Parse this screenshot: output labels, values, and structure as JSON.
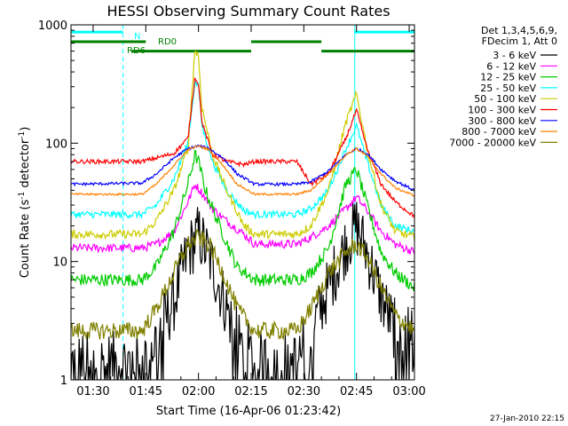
{
  "chart_data": {
    "type": "line",
    "title": "HESSI Observing Summary Count Rates",
    "xlabel": "Start Time (16-Apr-06 01:23:42)",
    "ylabel_main": "Count Rate (s",
    "ylabel_sup1": "-1",
    "ylabel_mid": " detector",
    "ylabel_sup2": "-1",
    "ylabel_end": ")",
    "y_scale": "log",
    "ylim": [
      1,
      1000
    ],
    "xlim_minutes": [
      83.7,
      181.5
    ],
    "x_ticks": [
      {
        "label": "01:30",
        "minutes": 90
      },
      {
        "label": "01:45",
        "minutes": 105
      },
      {
        "label": "02:00",
        "minutes": 120
      },
      {
        "label": "02:15",
        "minutes": 135
      },
      {
        "label": "02:30",
        "minutes": 150
      },
      {
        "label": "02:45",
        "minutes": 165
      },
      {
        "label": "03:00",
        "minutes": 180
      }
    ],
    "y_ticks": [
      {
        "label": "1",
        "value": 1
      },
      {
        "label": "10",
        "value": 10
      },
      {
        "label": "100",
        "value": 100
      },
      {
        "label": "1000",
        "value": 1000
      }
    ],
    "legend_header": [
      "Det 1,3,4,5,6,9,",
      "FDecim 1, Att 0"
    ],
    "legend_position": "right",
    "series": [
      {
        "name": "3 - 6 keV",
        "color": "#000000",
        "points": [
          [
            83.7,
            1.4
          ],
          [
            96,
            1.4
          ],
          [
            104,
            1.4
          ],
          [
            108,
            2.2
          ],
          [
            113,
            4.6
          ],
          [
            117,
            12
          ],
          [
            120,
            17
          ],
          [
            123,
            11
          ],
          [
            127,
            5
          ],
          [
            131,
            2.2
          ],
          [
            136,
            1.4
          ],
          [
            148,
            1.4
          ],
          [
            152,
            2.5
          ],
          [
            157,
            6
          ],
          [
            162,
            14
          ],
          [
            165,
            20
          ],
          [
            168,
            12
          ],
          [
            172,
            5
          ],
          [
            176,
            2.6
          ],
          [
            181.5,
            2.1
          ]
        ]
      },
      {
        "name": "6 - 12 keV",
        "color": "#ff00ff",
        "points": [
          [
            83.7,
            13
          ],
          [
            104,
            13
          ],
          [
            108,
            14
          ],
          [
            113,
            18
          ],
          [
            117,
            32
          ],
          [
            119,
            45
          ],
          [
            121,
            38
          ],
          [
            124,
            28
          ],
          [
            128,
            22
          ],
          [
            133,
            17
          ],
          [
            136,
            14
          ],
          [
            148,
            14
          ],
          [
            152,
            16
          ],
          [
            157,
            20
          ],
          [
            162,
            28
          ],
          [
            165,
            35
          ],
          [
            168,
            27
          ],
          [
            172,
            18
          ],
          [
            176,
            14
          ],
          [
            181.5,
            12
          ]
        ]
      },
      {
        "name": "12 - 25 keV",
        "color": "#00cc00",
        "points": [
          [
            83.7,
            7
          ],
          [
            104,
            7
          ],
          [
            108,
            9
          ],
          [
            113,
            18
          ],
          [
            117,
            45
          ],
          [
            119,
            80
          ],
          [
            120,
            70
          ],
          [
            122,
            40
          ],
          [
            126,
            20
          ],
          [
            131,
            9
          ],
          [
            136,
            7
          ],
          [
            148,
            7
          ],
          [
            152,
            8
          ],
          [
            157,
            13
          ],
          [
            162,
            45
          ],
          [
            165,
            60
          ],
          [
            168,
            30
          ],
          [
            172,
            12
          ],
          [
            176,
            8
          ],
          [
            181.5,
            6
          ]
        ]
      },
      {
        "name": "25 - 50 keV",
        "color": "#00ffff",
        "points": [
          [
            83.7,
            25
          ],
          [
            104,
            25
          ],
          [
            108,
            30
          ],
          [
            113,
            50
          ],
          [
            117,
            100
          ],
          [
            119,
            330
          ],
          [
            120,
            300
          ],
          [
            121,
            140
          ],
          [
            124,
            70
          ],
          [
            128,
            40
          ],
          [
            133,
            27
          ],
          [
            136,
            25
          ],
          [
            148,
            25
          ],
          [
            152,
            28
          ],
          [
            157,
            40
          ],
          [
            162,
            90
          ],
          [
            165,
            140
          ],
          [
            168,
            70
          ],
          [
            172,
            30
          ],
          [
            176,
            20
          ],
          [
            181.5,
            18
          ]
        ]
      },
      {
        "name": "50 - 100 keV",
        "color": "#cccc00",
        "points": [
          [
            83.7,
            17
          ],
          [
            104,
            17
          ],
          [
            108,
            22
          ],
          [
            113,
            40
          ],
          [
            117,
            90
          ],
          [
            119,
            620
          ],
          [
            120,
            540
          ],
          [
            121,
            200
          ],
          [
            124,
            80
          ],
          [
            128,
            40
          ],
          [
            133,
            20
          ],
          [
            136,
            17
          ],
          [
            148,
            17
          ],
          [
            152,
            20
          ],
          [
            157,
            40
          ],
          [
            162,
            150
          ],
          [
            165,
            260
          ],
          [
            168,
            90
          ],
          [
            172,
            30
          ],
          [
            176,
            18
          ],
          [
            181.5,
            16
          ]
        ]
      },
      {
        "name": "100 - 300 keV",
        "color": "#ff0000",
        "points": [
          [
            83.7,
            70
          ],
          [
            104,
            70
          ],
          [
            108,
            75
          ],
          [
            113,
            82
          ],
          [
            117,
            110
          ],
          [
            119,
            360
          ],
          [
            120,
            320
          ],
          [
            121,
            150
          ],
          [
            124,
            80
          ],
          [
            128,
            70
          ],
          [
            133,
            66
          ],
          [
            136,
            70
          ],
          [
            148,
            70
          ],
          [
            152,
            45
          ],
          [
            157,
            55
          ],
          [
            162,
            110
          ],
          [
            165,
            190
          ],
          [
            168,
            90
          ],
          [
            172,
            45
          ],
          [
            176,
            32
          ],
          [
            181.5,
            24
          ]
        ]
      },
      {
        "name": "300 - 800 keV",
        "color": "#0000ff",
        "points": [
          [
            83.7,
            45
          ],
          [
            104,
            46
          ],
          [
            108,
            55
          ],
          [
            113,
            75
          ],
          [
            117,
            90
          ],
          [
            120,
            95
          ],
          [
            123,
            90
          ],
          [
            127,
            75
          ],
          [
            131,
            55
          ],
          [
            136,
            45
          ],
          [
            148,
            45
          ],
          [
            152,
            47
          ],
          [
            157,
            58
          ],
          [
            162,
            80
          ],
          [
            165,
            90
          ],
          [
            168,
            82
          ],
          [
            172,
            60
          ],
          [
            176,
            48
          ],
          [
            181.5,
            40
          ]
        ]
      },
      {
        "name": "800 - 7000 keV",
        "color": "#ff8000",
        "points": [
          [
            83.7,
            37
          ],
          [
            104,
            37
          ],
          [
            108,
            45
          ],
          [
            113,
            65
          ],
          [
            117,
            88
          ],
          [
            120,
            95
          ],
          [
            123,
            88
          ],
          [
            127,
            65
          ],
          [
            131,
            45
          ],
          [
            136,
            37
          ],
          [
            148,
            37
          ],
          [
            152,
            40
          ],
          [
            157,
            55
          ],
          [
            162,
            80
          ],
          [
            165,
            90
          ],
          [
            168,
            78
          ],
          [
            172,
            55
          ],
          [
            176,
            42
          ],
          [
            181.5,
            36
          ]
        ]
      },
      {
        "name": "7000 - 20000 keV",
        "color": "#808000",
        "points": [
          [
            83.7,
            2.6
          ],
          [
            104,
            2.6
          ],
          [
            108,
            4
          ],
          [
            113,
            8
          ],
          [
            117,
            14
          ],
          [
            120,
            16
          ],
          [
            123,
            14
          ],
          [
            127,
            8
          ],
          [
            131,
            4
          ],
          [
            136,
            2.6
          ],
          [
            148,
            2.6
          ],
          [
            152,
            4
          ],
          [
            157,
            8
          ],
          [
            162,
            12
          ],
          [
            165,
            14
          ],
          [
            168,
            11
          ],
          [
            172,
            6
          ],
          [
            176,
            3.5
          ],
          [
            181.5,
            2.6
          ]
        ]
      }
    ],
    "status_bars": [
      {
        "label": "N",
        "color": "#00ffff",
        "level": 870,
        "segments": [
          [
            83.7,
            98.5
          ],
          [
            164.5,
            181.5
          ]
        ]
      },
      {
        "label": "RD0",
        "color": "#008000",
        "level": 720,
        "segments": [
          [
            83.7,
            105
          ],
          [
            135,
            155
          ]
        ]
      },
      {
        "label": "RD6",
        "color": "#008000",
        "level": 600,
        "segments": [
          [
            101,
            135
          ],
          [
            155,
            181.5
          ]
        ]
      }
    ],
    "vertical_markers": [
      {
        "color": "#00ffff",
        "style": "solid",
        "minutes": 83.7
      },
      {
        "color": "#00ffff",
        "style": "dashed",
        "minutes": 98.5
      },
      {
        "color": "#00ffff",
        "style": "solid",
        "minutes": 164.5
      },
      {
        "color": "#00ffff",
        "style": "dashed",
        "minutes": 181.5
      }
    ]
  },
  "timestamp": "27-Jan-2010 22:15"
}
